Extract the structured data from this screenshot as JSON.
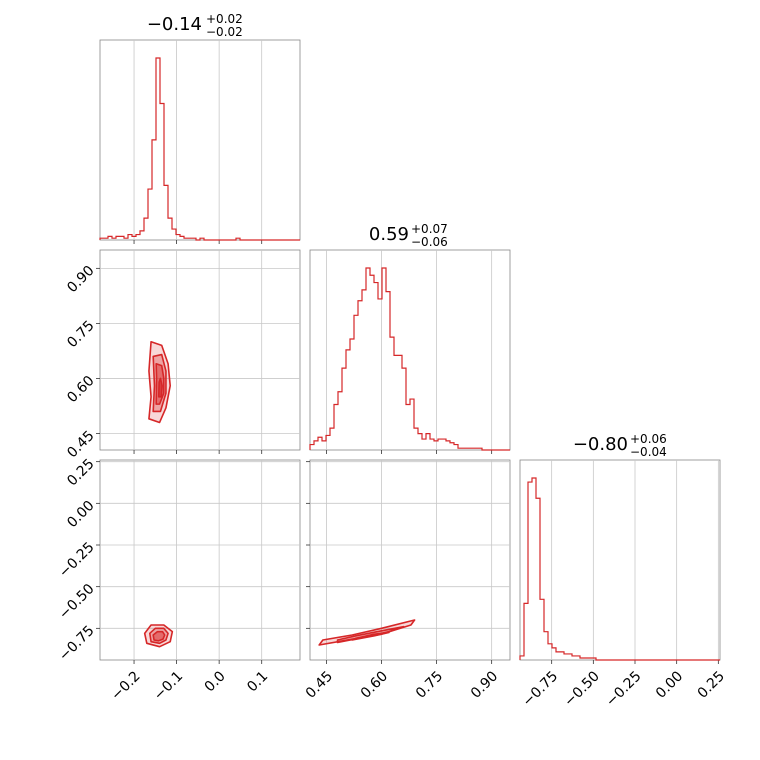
{
  "colors": {
    "series": "#d62728",
    "frame": "#888888",
    "grid": "#c8c8c8"
  },
  "chart_data": {
    "type": "corner",
    "parameters": [
      {
        "median": -0.14,
        "plus": 0.02,
        "minus": 0.02,
        "title_main": "−0.14",
        "title_sup": "+0.02",
        "title_sub": "−0.02",
        "range": [
          -0.28,
          0.19
        ],
        "ticks": [
          -0.2,
          -0.1,
          0.0,
          0.1
        ],
        "tick_labels": [
          "−0.2",
          "−0.1",
          "0.0",
          "0.1"
        ]
      },
      {
        "median": 0.59,
        "plus": 0.07,
        "minus": 0.06,
        "title_main": "0.59",
        "title_sup": "+0.07",
        "title_sub": "−0.06",
        "range": [
          0.405,
          0.95
        ],
        "ticks": [
          0.45,
          0.6,
          0.75,
          0.9
        ],
        "tick_labels": [
          "0.45",
          "0.60",
          "0.75",
          "0.90"
        ]
      },
      {
        "median": -0.8,
        "plus": 0.06,
        "minus": 0.04,
        "title_main": "−0.80",
        "title_sup": "+0.06",
        "title_sub": "−0.04",
        "range": [
          -0.94,
          0.26
        ],
        "ticks": [
          -0.75,
          -0.5,
          -0.25,
          0.0,
          0.25
        ],
        "tick_labels": [
          "−0.75",
          "−0.50",
          "−0.25",
          "0.00",
          "0.25"
        ]
      }
    ],
    "histograms": [
      {
        "param": 0,
        "bin_edges_start": -0.28,
        "bin_width": 0.0094,
        "counts": [
          0.01,
          0.01,
          0.02,
          0.01,
          0.02,
          0.02,
          0.01,
          0.03,
          0.02,
          0.03,
          0.05,
          0.12,
          0.28,
          0.55,
          1.0,
          0.75,
          0.3,
          0.12,
          0.06,
          0.03,
          0.02,
          0.01,
          0.01,
          0.01,
          0.0,
          0.01,
          0.0,
          0.0,
          0.0,
          0.0,
          0.0,
          0.0,
          0.0,
          0.0,
          0.01,
          0.0,
          0.0,
          0.0,
          0.0,
          0.0,
          0.0,
          0.0,
          0.0,
          0.0,
          0.0,
          0.0,
          0.0,
          0.0,
          0.0,
          0.0
        ]
      },
      {
        "param": 1,
        "bin_edges_start": 0.405,
        "bin_width": 0.0109,
        "counts": [
          0.03,
          0.05,
          0.07,
          0.05,
          0.08,
          0.12,
          0.25,
          0.32,
          0.45,
          0.55,
          0.61,
          0.74,
          0.82,
          0.88,
          1.0,
          0.96,
          0.92,
          0.83,
          1.0,
          0.87,
          0.62,
          0.52,
          0.52,
          0.45,
          0.25,
          0.28,
          0.12,
          0.09,
          0.06,
          0.09,
          0.06,
          0.05,
          0.06,
          0.06,
          0.05,
          0.04,
          0.03,
          0.01,
          0.01,
          0.01,
          0.01,
          0.01,
          0.01,
          0.0,
          0.0,
          0.0,
          0.0,
          0.0,
          0.0,
          0.0
        ]
      },
      {
        "param": 2,
        "bin_edges_start": -0.94,
        "bin_width": 0.024,
        "counts": [
          0.02,
          0.28,
          0.88,
          0.9,
          0.8,
          0.3,
          0.14,
          0.08,
          0.06,
          0.04,
          0.04,
          0.03,
          0.03,
          0.02,
          0.02,
          0.01,
          0.01,
          0.01,
          0.01,
          0.0,
          0.0,
          0.0,
          0.0,
          0.0,
          0.0,
          0.0,
          0.0,
          0.0,
          0.0,
          0.0,
          0.0,
          0.0,
          0.0,
          0.0,
          0.0,
          0.0,
          0.0,
          0.0,
          0.0,
          0.0,
          0.0,
          0.0,
          0.0,
          0.0,
          0.0,
          0.0,
          0.0,
          0.0,
          0.0,
          0.0
        ]
      }
    ],
    "pairs": [
      {
        "x_param": 0,
        "y_param": 1,
        "contours": [
          {
            "level": 1,
            "points": [
              [
                -0.165,
                0.49
              ],
              [
                -0.16,
                0.55
              ],
              [
                -0.165,
                0.62
              ],
              [
                -0.16,
                0.7
              ],
              [
                -0.135,
                0.69
              ],
              [
                -0.12,
                0.64
              ],
              [
                -0.115,
                0.58
              ],
              [
                -0.125,
                0.52
              ],
              [
                -0.14,
                0.48
              ]
            ]
          },
          {
            "level": 2,
            "points": [
              [
                -0.155,
                0.51
              ],
              [
                -0.152,
                0.58
              ],
              [
                -0.155,
                0.66
              ],
              [
                -0.135,
                0.665
              ],
              [
                -0.125,
                0.62
              ],
              [
                -0.125,
                0.56
              ],
              [
                -0.138,
                0.51
              ]
            ]
          },
          {
            "level": 3,
            "points": [
              [
                -0.148,
                0.53
              ],
              [
                -0.147,
                0.6
              ],
              [
                -0.148,
                0.64
              ],
              [
                -0.135,
                0.635
              ],
              [
                -0.13,
                0.6
              ],
              [
                -0.13,
                0.56
              ],
              [
                -0.14,
                0.53
              ]
            ]
          },
          {
            "level": 4,
            "points": [
              [
                -0.142,
                0.55
              ],
              [
                -0.141,
                0.59
              ],
              [
                -0.138,
                0.6
              ],
              [
                -0.134,
                0.58
              ],
              [
                -0.136,
                0.55
              ]
            ]
          }
        ]
      },
      {
        "x_param": 0,
        "y_param": 2,
        "contours": [
          {
            "level": 1,
            "points": [
              [
                -0.17,
                -0.84
              ],
              [
                -0.175,
                -0.78
              ],
              [
                -0.16,
                -0.73
              ],
              [
                -0.13,
                -0.73
              ],
              [
                -0.11,
                -0.77
              ],
              [
                -0.115,
                -0.83
              ],
              [
                -0.14,
                -0.86
              ]
            ]
          },
          {
            "level": 2,
            "points": [
              [
                -0.16,
                -0.83
              ],
              [
                -0.163,
                -0.78
              ],
              [
                -0.15,
                -0.75
              ],
              [
                -0.13,
                -0.75
              ],
              [
                -0.12,
                -0.78
              ],
              [
                -0.125,
                -0.82
              ],
              [
                -0.14,
                -0.84
              ]
            ]
          },
          {
            "level": 3,
            "points": [
              [
                -0.153,
                -0.82
              ],
              [
                -0.155,
                -0.79
              ],
              [
                -0.145,
                -0.77
              ],
              [
                -0.133,
                -0.77
              ],
              [
                -0.128,
                -0.79
              ],
              [
                -0.132,
                -0.815
              ],
              [
                -0.143,
                -0.825
              ]
            ]
          }
        ]
      },
      {
        "x_param": 1,
        "y_param": 2,
        "contours": [
          {
            "level": 1,
            "points": [
              [
                0.43,
                -0.85
              ],
              [
                0.52,
                -0.815
              ],
              [
                0.6,
                -0.785
              ],
              [
                0.68,
                -0.73
              ],
              [
                0.69,
                -0.7
              ],
              [
                0.6,
                -0.75
              ],
              [
                0.52,
                -0.79
              ],
              [
                0.44,
                -0.82
              ]
            ]
          },
          {
            "level": 2,
            "points": [
              [
                0.48,
                -0.835
              ],
              [
                0.55,
                -0.805
              ],
              [
                0.62,
                -0.77
              ],
              [
                0.66,
                -0.74
              ],
              [
                0.6,
                -0.765
              ],
              [
                0.53,
                -0.795
              ],
              [
                0.48,
                -0.82
              ]
            ]
          },
          {
            "level": 3,
            "points": [
              [
                0.52,
                -0.82
              ],
              [
                0.58,
                -0.795
              ],
              [
                0.62,
                -0.775
              ],
              [
                0.58,
                -0.785
              ],
              [
                0.53,
                -0.81
              ]
            ]
          }
        ]
      }
    ]
  }
}
